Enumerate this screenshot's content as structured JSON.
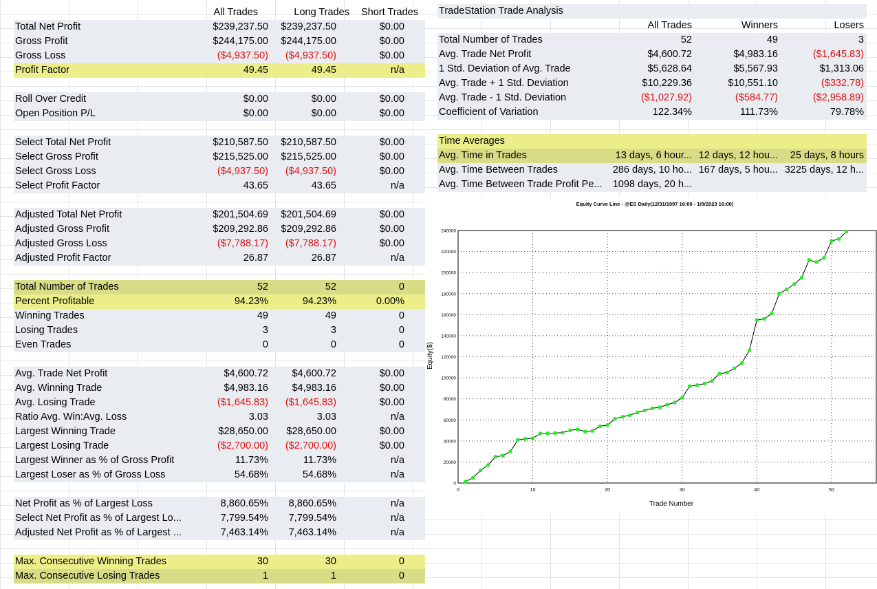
{
  "left_table": {
    "headers": [
      "All Trades",
      "Long Trades",
      "Short Trades"
    ],
    "rows": [
      {
        "label": "Total Net Profit",
        "values": [
          "$239,237.50",
          "$239,237.50",
          "$0.00"
        ],
        "style": "shade"
      },
      {
        "label": "Gross Profit",
        "values": [
          "$244,175.00",
          "$244,175.00",
          "$0.00"
        ],
        "style": "shade"
      },
      {
        "label": "Gross Loss",
        "values": [
          "($4,937.50)",
          "($4,937.50)",
          "$0.00"
        ],
        "style": "shade",
        "neg": [
          true,
          true,
          false
        ]
      },
      {
        "label": "Profit Factor",
        "values": [
          "49.45",
          "49.45",
          "n/a"
        ],
        "style": "hl"
      },
      {
        "label": "",
        "values": [
          "",
          "",
          ""
        ],
        "style": "blank"
      },
      {
        "label": "Roll Over Credit",
        "values": [
          "$0.00",
          "$0.00",
          "$0.00"
        ],
        "style": "shade"
      },
      {
        "label": "Open Position P/L",
        "values": [
          "$0.00",
          "$0.00",
          "$0.00"
        ],
        "style": "shade"
      },
      {
        "label": "",
        "values": [
          "",
          "",
          ""
        ],
        "style": "blank"
      },
      {
        "label": "Select Total Net Profit",
        "values": [
          "$210,587.50",
          "$210,587.50",
          "$0.00"
        ],
        "style": "shade"
      },
      {
        "label": "Select Gross Profit",
        "values": [
          "$215,525.00",
          "$215,525.00",
          "$0.00"
        ],
        "style": "shade"
      },
      {
        "label": "Select Gross Loss",
        "values": [
          "($4,937.50)",
          "($4,937.50)",
          "$0.00"
        ],
        "style": "shade",
        "neg": [
          true,
          true,
          false
        ]
      },
      {
        "label": "Select Profit Factor",
        "values": [
          "43.65",
          "43.65",
          "n/a"
        ],
        "style": "shade"
      },
      {
        "label": "",
        "values": [
          "",
          "",
          ""
        ],
        "style": "blank"
      },
      {
        "label": "Adjusted Total Net Profit",
        "values": [
          "$201,504.69",
          "$201,504.69",
          "$0.00"
        ],
        "style": "shade"
      },
      {
        "label": "Adjusted Gross Profit",
        "values": [
          "$209,292.86",
          "$209,292.86",
          "$0.00"
        ],
        "style": "shade"
      },
      {
        "label": "Adjusted Gross Loss",
        "values": [
          "($7,788.17)",
          "($7,788.17)",
          "$0.00"
        ],
        "style": "shade",
        "neg": [
          true,
          true,
          false
        ]
      },
      {
        "label": "Adjusted Profit Factor",
        "values": [
          "26.87",
          "26.87",
          "n/a"
        ],
        "style": "shade"
      },
      {
        "label": "",
        "values": [
          "",
          "",
          ""
        ],
        "style": "blank"
      },
      {
        "label": "Total Number of Trades",
        "values": [
          "52",
          "52",
          "0"
        ],
        "style": "hl2"
      },
      {
        "label": "Percent Profitable",
        "values": [
          "94.23%",
          "94.23%",
          "0.00%"
        ],
        "style": "hl"
      },
      {
        "label": "Winning Trades",
        "values": [
          "49",
          "49",
          "0"
        ],
        "style": "shade"
      },
      {
        "label": "Losing Trades",
        "values": [
          "3",
          "3",
          "0"
        ],
        "style": "shade"
      },
      {
        "label": "Even Trades",
        "values": [
          "0",
          "0",
          "0"
        ],
        "style": "shade"
      },
      {
        "label": "",
        "values": [
          "",
          "",
          ""
        ],
        "style": "blank"
      },
      {
        "label": "Avg. Trade Net Profit",
        "values": [
          "$4,600.72",
          "$4,600.72",
          "$0.00"
        ],
        "style": "shade"
      },
      {
        "label": "Avg. Winning Trade",
        "values": [
          "$4,983.16",
          "$4,983.16",
          "$0.00"
        ],
        "style": "shade"
      },
      {
        "label": "Avg. Losing Trade",
        "values": [
          "($1,645.83)",
          "($1,645.83)",
          "$0.00"
        ],
        "style": "shade",
        "neg": [
          true,
          true,
          false
        ]
      },
      {
        "label": "Ratio Avg. Win:Avg. Loss",
        "values": [
          "3.03",
          "3.03",
          "n/a"
        ],
        "style": "shade"
      },
      {
        "label": "Largest Winning Trade",
        "values": [
          "$28,650.00",
          "$28,650.00",
          "$0.00"
        ],
        "style": "shade"
      },
      {
        "label": "Largest Losing Trade",
        "values": [
          "($2,700.00)",
          "($2,700.00)",
          "$0.00"
        ],
        "style": "shade",
        "neg": [
          true,
          true,
          false
        ]
      },
      {
        "label": "Largest Winner as % of Gross Profit",
        "values": [
          "11.73%",
          "11.73%",
          "n/a"
        ],
        "style": "shade"
      },
      {
        "label": "Largest Loser as % of Gross Loss",
        "values": [
          "54.68%",
          "54.68%",
          "n/a"
        ],
        "style": "shade"
      },
      {
        "label": "",
        "values": [
          "",
          "",
          ""
        ],
        "style": "blank"
      },
      {
        "label": "Net Profit as % of Largest Loss",
        "values": [
          "8,860.65%",
          "8,860.65%",
          "n/a"
        ],
        "style": "shade"
      },
      {
        "label": "Select Net Profit as % of Largest Lo...",
        "values": [
          "7,799.54%",
          "7,799.54%",
          "n/a"
        ],
        "style": "shade"
      },
      {
        "label": "Adjusted Net Profit as % of Largest ...",
        "values": [
          "7,463.14%",
          "7,463.14%",
          "n/a"
        ],
        "style": "shade"
      },
      {
        "label": "",
        "values": [
          "",
          "",
          ""
        ],
        "style": "blank"
      },
      {
        "label": "Max. Consecutive Winning Trades",
        "values": [
          "30",
          "30",
          "0"
        ],
        "style": "hl"
      },
      {
        "label": "Max. Consecutive Losing Trades",
        "values": [
          "1",
          "1",
          "0"
        ],
        "style": "hl2"
      }
    ]
  },
  "right_table": {
    "title": "TradeStation Trade Analysis",
    "headers": [
      "All Trades",
      "Winners",
      "Losers"
    ],
    "rows": [
      {
        "label": "Total Number of Trades",
        "values": [
          "52",
          "49",
          "3"
        ],
        "style": "shade"
      },
      {
        "label": "Avg. Trade Net Profit",
        "values": [
          "$4,600.72",
          "$4,983.16",
          "($1,645.83)"
        ],
        "style": "shade",
        "neg": [
          false,
          false,
          true
        ]
      },
      {
        "label": "1 Std. Deviation of Avg. Trade",
        "values": [
          "$5,628.64",
          "$5,567.93",
          "$1,313.06"
        ],
        "style": "shade"
      },
      {
        "label": "Avg. Trade + 1 Std. Deviation",
        "values": [
          "$10,229.36",
          "$10,551.10",
          "($332.78)"
        ],
        "style": "shade",
        "neg": [
          false,
          false,
          true
        ]
      },
      {
        "label": "Avg. Trade - 1 Std. Deviation",
        "values": [
          "($1,027.92)",
          "($584.77)",
          "($2,958.89)"
        ],
        "style": "shade",
        "neg": [
          true,
          true,
          true
        ]
      },
      {
        "label": "Coefficient of Variation",
        "values": [
          "122.34%",
          "111.73%",
          "79.78%"
        ],
        "style": "shade"
      }
    ],
    "time_title": "Time Averages",
    "time_rows": [
      {
        "label": "Avg. Time in Trades",
        "values": [
          "13 days, 6 hour...",
          "12 days, 12 hou...",
          "25 days, 8 hours"
        ],
        "style": "hl2"
      },
      {
        "label": "Avg. Time Between Trades",
        "values": [
          "286 days, 10 ho...",
          "167 days, 5 hou...",
          "3225 days, 12 h..."
        ],
        "style": "shade"
      },
      {
        "label": "Avg. Time Between Trade Profit Pe...",
        "values": [
          "1098 days, 20 h...",
          "",
          ""
        ],
        "style": "shade"
      }
    ]
  },
  "chart_data": {
    "type": "line",
    "title": "Equity Curve Line - @ES Daily(12/31/1997 16:00 - 1/9/2023 16:00)",
    "xlabel": "Trade Number",
    "ylabel": "Equity($)",
    "xlim": [
      0,
      56
    ],
    "ylim": [
      0,
      240000
    ],
    "x_ticks": [
      0,
      10,
      20,
      30,
      40,
      50
    ],
    "y_ticks": [
      0,
      20000,
      40000,
      60000,
      80000,
      100000,
      120000,
      140000,
      160000,
      180000,
      200000,
      220000,
      240000
    ],
    "grid": true,
    "line_color": "#000000",
    "marker_color": "#22ee22",
    "x": [
      1,
      2,
      3,
      4,
      5,
      6,
      7,
      8,
      9,
      10,
      11,
      12,
      13,
      14,
      15,
      16,
      17,
      18,
      19,
      20,
      21,
      22,
      23,
      24,
      25,
      26,
      27,
      28,
      29,
      30,
      31,
      32,
      33,
      34,
      35,
      36,
      37,
      38,
      39,
      40,
      41,
      42,
      43,
      44,
      45,
      46,
      47,
      48,
      49,
      50,
      51,
      52
    ],
    "values": [
      1500,
      5000,
      12000,
      17000,
      25000,
      26000,
      30000,
      41000,
      42000,
      42500,
      47000,
      47200,
      47500,
      48000,
      50000,
      51000,
      49000,
      49500,
      54000,
      55000,
      61000,
      63000,
      64500,
      67000,
      69000,
      71000,
      72000,
      74500,
      76500,
      81000,
      92000,
      93000,
      94500,
      97000,
      104000,
      105000,
      109000,
      114000,
      126000,
      155000,
      156000,
      161000,
      180000,
      184000,
      189000,
      195000,
      212000,
      210000,
      214000,
      230000,
      232000,
      239000
    ]
  }
}
